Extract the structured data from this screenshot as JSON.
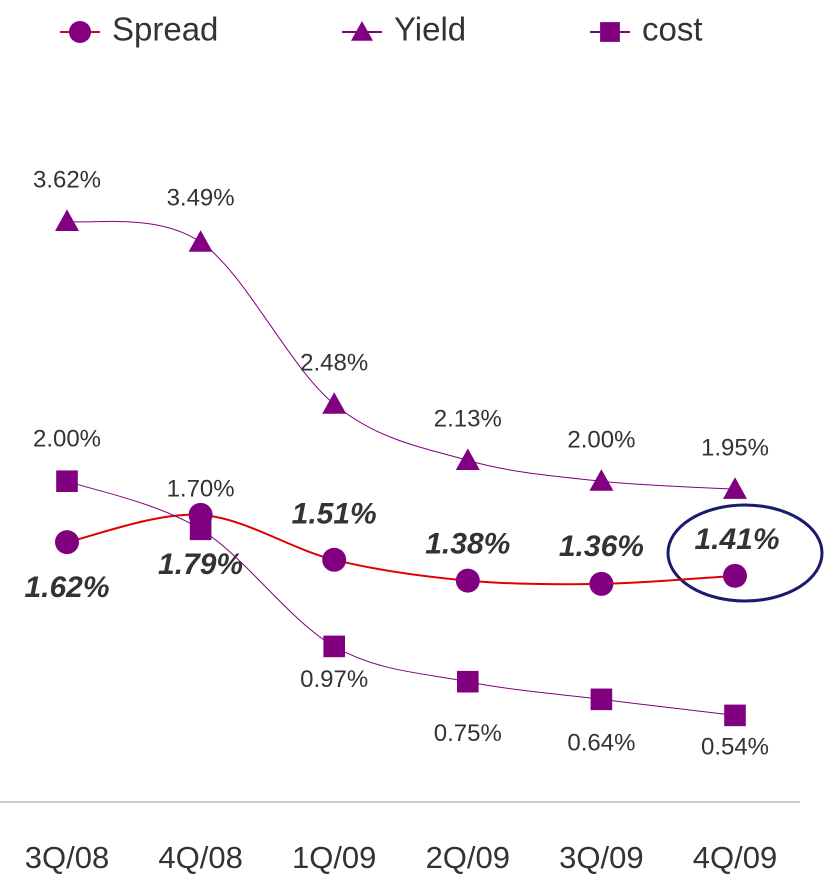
{
  "chart_data": {
    "type": "line",
    "categories": [
      "3Q/08",
      "4Q/08",
      "1Q/09",
      "2Q/09",
      "3Q/09",
      "4Q/09"
    ],
    "ylim": [
      0,
      5
    ],
    "series": [
      {
        "name": "Spread",
        "color": "#800080",
        "line_color": "#e00000",
        "marker": "circle",
        "values": [
          1.62,
          1.79,
          1.51,
          1.38,
          1.36,
          1.41
        ],
        "value_labels": [
          "1.62%",
          "1.79%",
          "1.51%",
          "1.38%",
          "1.36%",
          "1.41%"
        ]
      },
      {
        "name": "Yield",
        "color": "#800080",
        "line_color": "#800080",
        "marker": "triangle",
        "values": [
          3.62,
          3.49,
          2.48,
          2.13,
          2.0,
          1.95
        ],
        "value_labels": [
          "3.62%",
          "3.49%",
          "2.48%",
          "2.13%",
          "2.00%",
          "1.95%"
        ]
      },
      {
        "name": "cost",
        "color": "#800080",
        "line_color": "#800080",
        "marker": "square",
        "values": [
          2.0,
          1.7,
          0.97,
          0.75,
          0.64,
          0.54
        ],
        "value_labels": [
          "2.00%",
          "1.70%",
          "0.97%",
          "0.75%",
          "0.64%",
          "0.54%"
        ]
      }
    ]
  }
}
